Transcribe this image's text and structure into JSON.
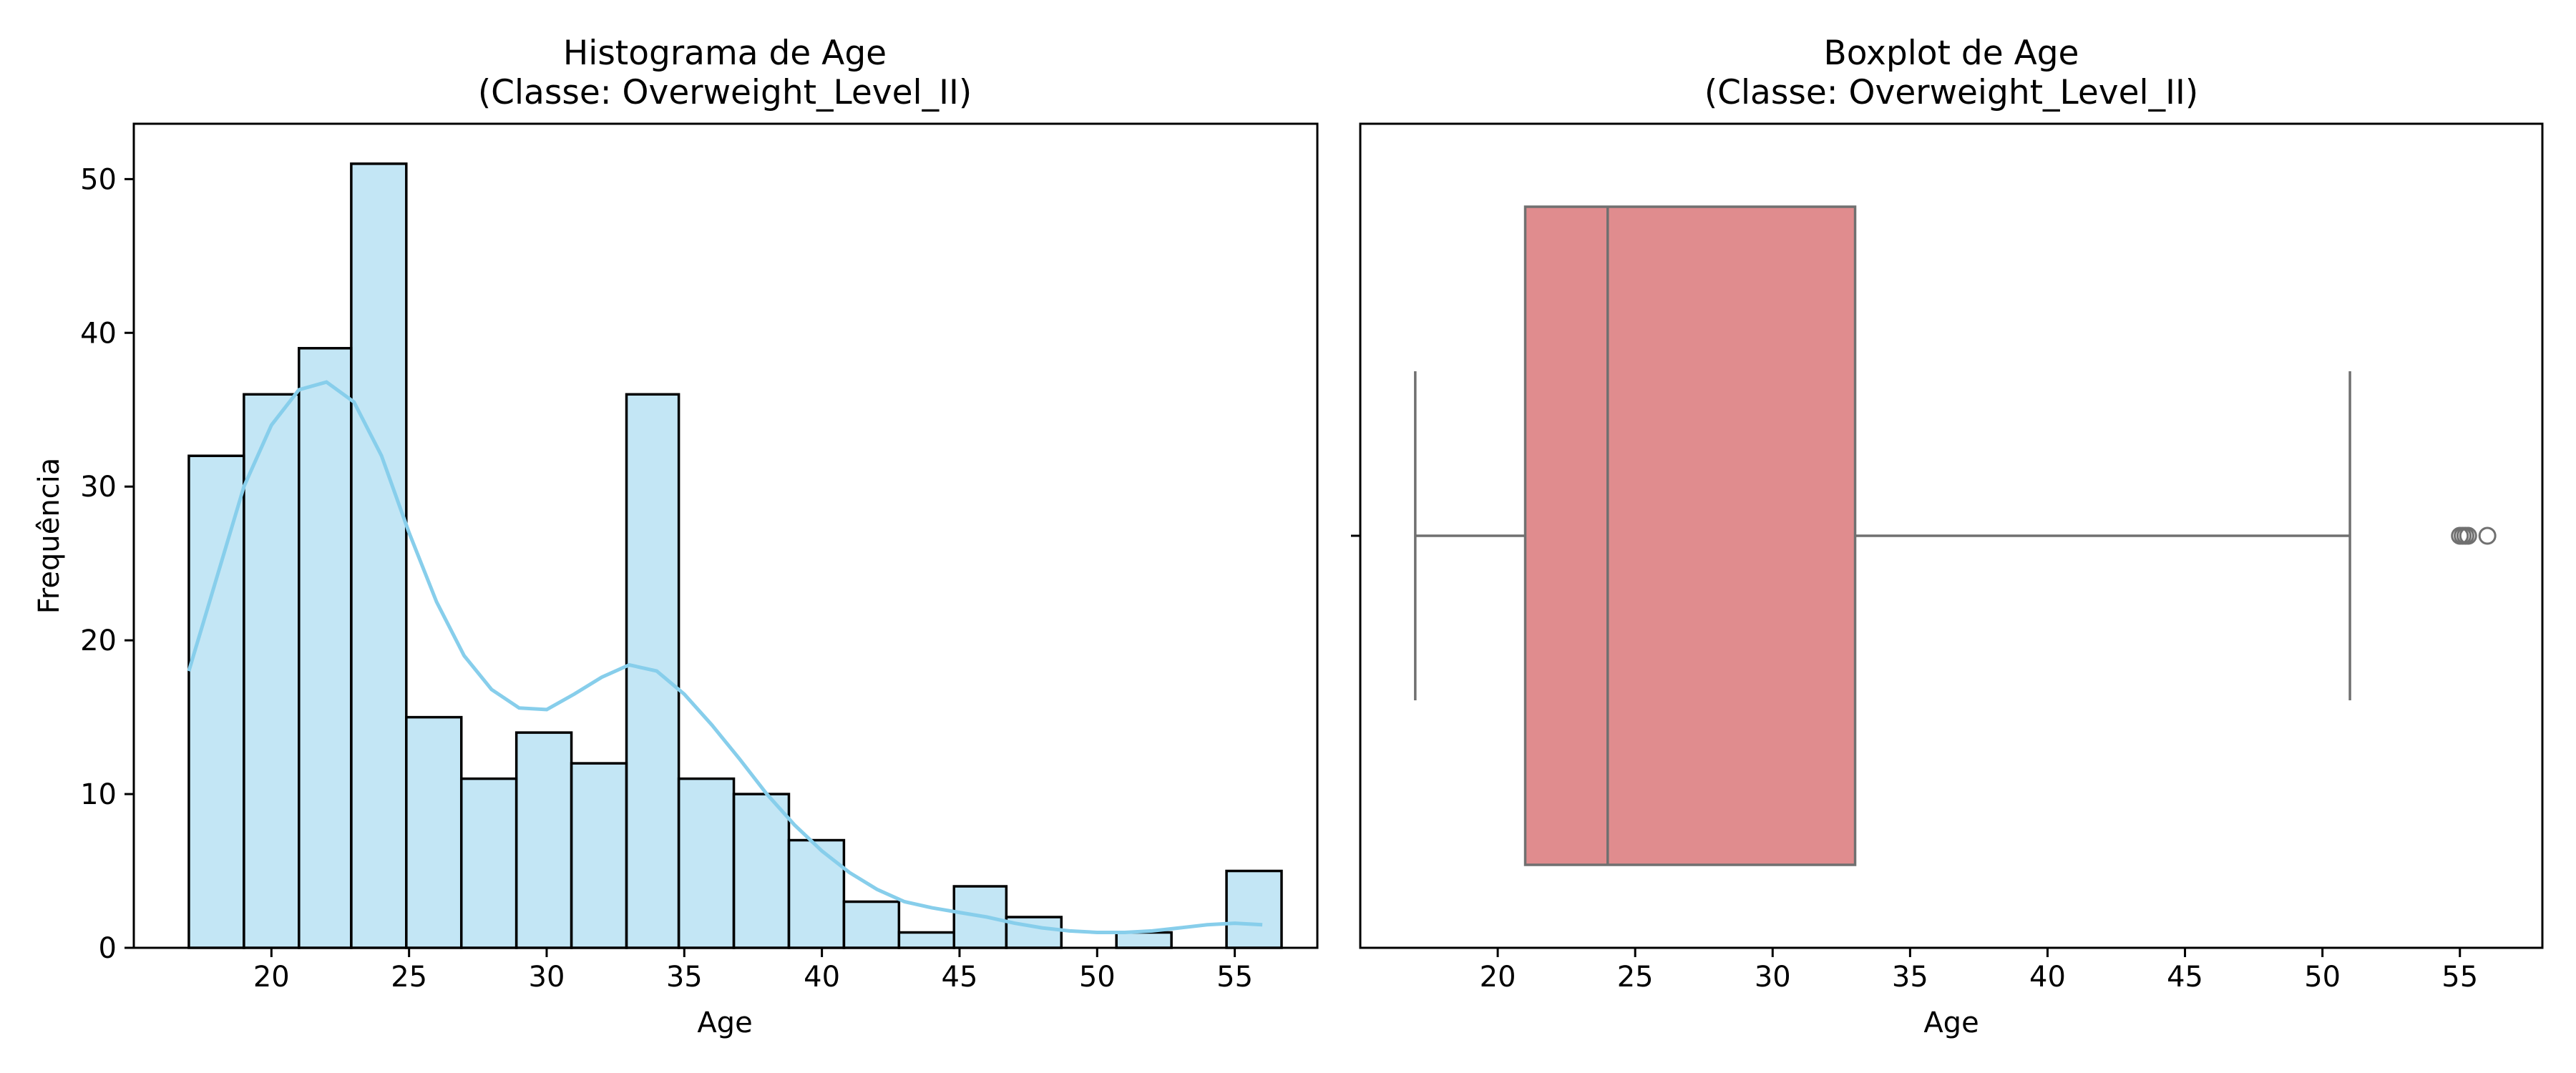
{
  "chart_data": [
    {
      "type": "histogram",
      "title_line1": "Histograma de Age",
      "title_line2": "(Classe: Overweight_Level_II)",
      "xlabel": "Age",
      "ylabel": "Frequência",
      "xlim": [
        15,
        58
      ],
      "ylim": [
        0,
        53.6
      ],
      "xticks": [
        20,
        25,
        30,
        35,
        40,
        45,
        50,
        55
      ],
      "yticks": [
        0,
        10,
        20,
        30,
        40,
        50
      ],
      "grid": false,
      "bar_color": "#87CEEB",
      "bar_edge_color": "#000000",
      "bins": [
        {
          "start": 17.0,
          "end": 19.0,
          "count": 32
        },
        {
          "start": 19.0,
          "end": 21.0,
          "count": 36
        },
        {
          "start": 21.0,
          "end": 22.9,
          "count": 39
        },
        {
          "start": 22.9,
          "end": 24.9,
          "count": 51
        },
        {
          "start": 24.9,
          "end": 26.9,
          "count": 15
        },
        {
          "start": 26.9,
          "end": 28.9,
          "count": 11
        },
        {
          "start": 28.9,
          "end": 30.9,
          "count": 14
        },
        {
          "start": 30.9,
          "end": 32.9,
          "count": 12
        },
        {
          "start": 32.9,
          "end": 34.8,
          "count": 36
        },
        {
          "start": 34.8,
          "end": 36.8,
          "count": 11
        },
        {
          "start": 36.8,
          "end": 38.8,
          "count": 10
        },
        {
          "start": 38.8,
          "end": 40.8,
          "count": 7
        },
        {
          "start": 40.8,
          "end": 42.8,
          "count": 3
        },
        {
          "start": 42.8,
          "end": 44.8,
          "count": 1
        },
        {
          "start": 44.8,
          "end": 46.7,
          "count": 4
        },
        {
          "start": 46.7,
          "end": 48.7,
          "count": 2
        },
        {
          "start": 48.7,
          "end": 50.7,
          "count": 0
        },
        {
          "start": 50.7,
          "end": 52.7,
          "count": 1
        },
        {
          "start": 52.7,
          "end": 54.7,
          "count": 0
        },
        {
          "start": 54.7,
          "end": 56.7,
          "count": 5
        }
      ],
      "kde": {
        "color": "#87CEEB",
        "x": [
          17,
          18,
          19,
          20,
          21,
          22,
          23,
          24,
          25,
          26,
          27,
          28,
          29,
          30,
          31,
          32,
          33,
          34,
          35,
          36,
          37,
          38,
          39,
          40,
          41,
          42,
          43,
          44,
          45,
          46,
          47,
          48,
          49,
          50,
          51,
          52,
          53,
          54,
          55,
          56
        ],
        "y": [
          18,
          24,
          30,
          34,
          36.3,
          36.8,
          35.5,
          32,
          27,
          22.5,
          19,
          16.8,
          15.6,
          15.5,
          16.5,
          17.6,
          18.4,
          18,
          16.5,
          14.5,
          12.3,
          10,
          8,
          6.3,
          4.9,
          3.8,
          3.0,
          2.6,
          2.3,
          2.0,
          1.6,
          1.3,
          1.1,
          1.0,
          1.0,
          1.1,
          1.3,
          1.5,
          1.6,
          1.5
        ]
      }
    },
    {
      "type": "boxplot",
      "title_line1": "Boxplot de Age",
      "title_line2": "(Classe: Overweight_Level_II)",
      "xlabel": "Age",
      "xlim": [
        15,
        58
      ],
      "xticks": [
        20,
        25,
        30,
        35,
        40,
        45,
        50,
        55
      ],
      "grid": false,
      "box_color": "#E08C8E",
      "line_color": "#707070",
      "whisker_low": 17,
      "q1": 21,
      "median": 24,
      "q3": 33,
      "whisker_high": 51,
      "outliers": [
        55,
        55.1,
        55.2,
        55.3,
        56
      ]
    }
  ]
}
